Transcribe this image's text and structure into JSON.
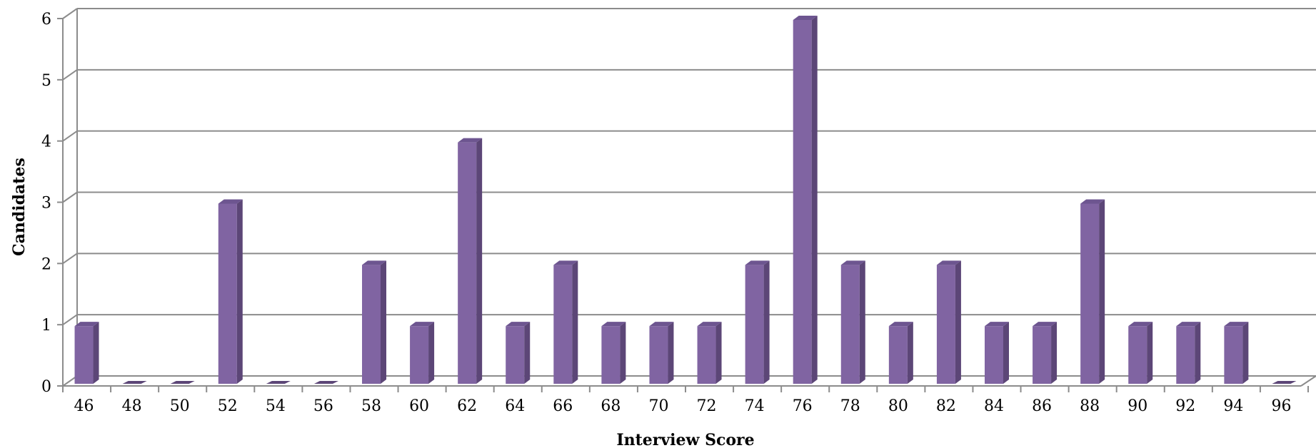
{
  "chart_data": {
    "type": "bar",
    "title": "",
    "xlabel": "Interview Score",
    "ylabel": "Candidates",
    "ylim": [
      0,
      6
    ],
    "yticks": [
      "0",
      "1",
      "2",
      "3",
      "4",
      "5",
      "6"
    ],
    "grid": true,
    "legend": "none",
    "categories": [
      "46",
      "48",
      "50",
      "52",
      "54",
      "56",
      "58",
      "60",
      "62",
      "64",
      "66",
      "68",
      "70",
      "72",
      "74",
      "76",
      "78",
      "80",
      "82",
      "84",
      "86",
      "88",
      "90",
      "92",
      "94",
      "96"
    ],
    "values": [
      1,
      0,
      0,
      3,
      0,
      0,
      2,
      1,
      4,
      1,
      2,
      1,
      1,
      1,
      2,
      6,
      2,
      1,
      2,
      1,
      1,
      3,
      1,
      1,
      1,
      0
    ],
    "colors": {
      "front": "#8064a2",
      "side": "#5c4677",
      "top": "#6d5590",
      "grid": "#8c8c8c"
    }
  }
}
